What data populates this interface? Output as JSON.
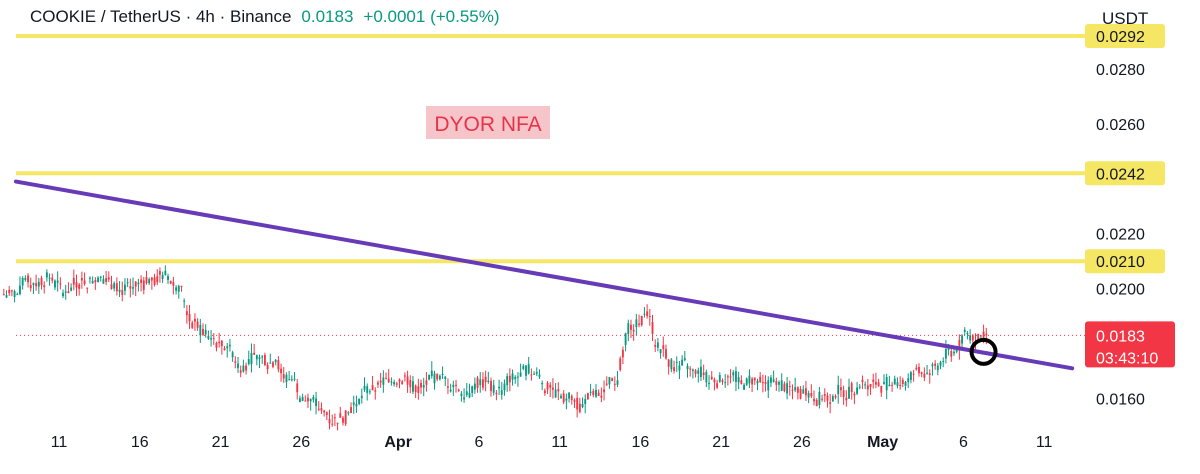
{
  "header": {
    "symbol": "COOKIE / TetherUS · 4h · Binance",
    "price": "0.0183",
    "change": "+0.0001 (+0.55%)"
  },
  "currency_label": "USDT",
  "annotation": "DYOR NFA",
  "countdown": "03:43:10",
  "colors": {
    "up": "#089981",
    "down": "#f23645",
    "horizontal_level": "#f5e663",
    "trendline": "#673ab7",
    "price_badge": "#f23645",
    "annotation_bg": "#f6c5c9",
    "annotation_text": "#e8334a",
    "marker_circle": "#000000"
  },
  "chart_data": {
    "type": "candlestick",
    "ylim": [
      0.015,
      0.03
    ],
    "x_tick_labels": [
      "11",
      "16",
      "21",
      "26",
      "Apr",
      "6",
      "11",
      "16",
      "21",
      "26",
      "May",
      "6",
      "11"
    ],
    "y_tick_labels": [
      "0.0280",
      "0.0260",
      "0.0220",
      "0.0200",
      "0.0160"
    ],
    "horizontal_levels": [
      0.0292,
      0.0242,
      0.021
    ],
    "horizontal_level_labels": [
      "0.0292",
      "0.0242",
      "0.0210"
    ],
    "current_price": 0.0183,
    "current_price_label": "0.0183",
    "trendline": {
      "from": {
        "date": "Mar 8",
        "price": 0.0239
      },
      "to": {
        "date": "May 11",
        "price": 0.0171
      }
    },
    "marker": {
      "date": "May 7",
      "price": 0.0177,
      "shape": "circle"
    },
    "series": [
      {
        "dates": [
          "Mar 8",
          "Mar 9",
          "Mar 10",
          "Mar 11",
          "Mar 12",
          "Mar 13",
          "Mar 14",
          "Mar 15",
          "Mar 16",
          "Mar 17",
          "Mar 18",
          "Mar 19",
          "Mar 20",
          "Mar 21",
          "Mar 22",
          "Mar 23",
          "Mar 24",
          "Mar 25",
          "Mar 26",
          "Mar 27",
          "Mar 28",
          "Mar 29",
          "Mar 30",
          "Mar 31",
          "Apr 1",
          "Apr 2",
          "Apr 3",
          "Apr 4",
          "Apr 5",
          "Apr 6",
          "Apr 7",
          "Apr 8",
          "Apr 9",
          "Apr 10",
          "Apr 11",
          "Apr 12",
          "Apr 13",
          "Apr 14",
          "Apr 15",
          "Apr 16",
          "Apr 17",
          "Apr 18",
          "Apr 19",
          "Apr 20",
          "Apr 21",
          "Apr 22",
          "Apr 23",
          "Apr 24",
          "Apr 25",
          "Apr 26",
          "Apr 27",
          "Apr 28",
          "Apr 29",
          "Apr 30",
          "May 1",
          "May 2",
          "May 3",
          "May 4",
          "May 5",
          "May 6",
          "May 7"
        ],
        "close": [
          0.0198,
          0.0202,
          0.0204,
          0.0199,
          0.0203,
          0.0204,
          0.0202,
          0.02,
          0.0202,
          0.0205,
          0.0201,
          0.0188,
          0.0182,
          0.0179,
          0.0172,
          0.0175,
          0.0174,
          0.0167,
          0.0159,
          0.0155,
          0.0153,
          0.0158,
          0.0163,
          0.0166,
          0.0168,
          0.0164,
          0.0167,
          0.0165,
          0.0162,
          0.0166,
          0.0163,
          0.0168,
          0.0169,
          0.0164,
          0.016,
          0.0158,
          0.0161,
          0.0165,
          0.0185,
          0.019,
          0.0178,
          0.0172,
          0.0169,
          0.0167,
          0.0168,
          0.0165,
          0.0166,
          0.0165,
          0.0163,
          0.0162,
          0.0161,
          0.0163,
          0.0164,
          0.0166,
          0.0165,
          0.0166,
          0.0169,
          0.0172,
          0.0177,
          0.0183,
          0.0183
        ]
      }
    ]
  }
}
